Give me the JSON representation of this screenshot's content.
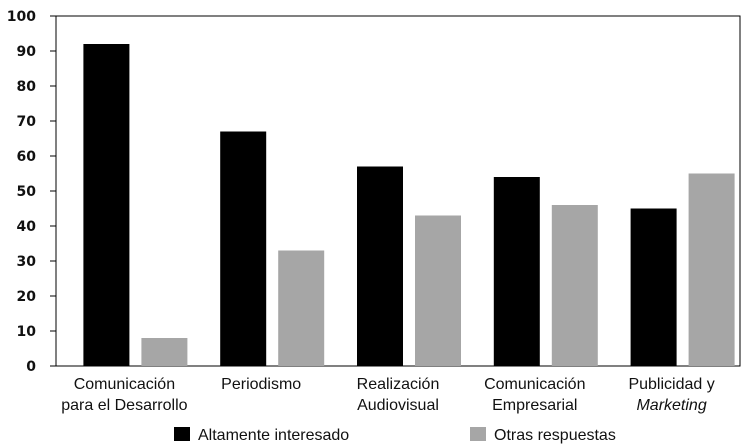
{
  "chart_data": {
    "type": "bar",
    "categories": [
      [
        "Comunicación",
        "para el Desarrollo"
      ],
      [
        "Periodismo"
      ],
      [
        "Realización",
        "Audiovisual"
      ],
      [
        "Comunicación",
        "Empresarial"
      ],
      [
        "Publicidad y",
        "Marketing"
      ]
    ],
    "series": [
      {
        "name": "Altamente interesado",
        "color": "#000000",
        "values": [
          92,
          67,
          57,
          54,
          45
        ]
      },
      {
        "name": "Otras respuestas",
        "color": "#a6a6a6",
        "values": [
          8,
          33,
          43,
          46,
          55
        ]
      }
    ],
    "ylim": [
      0,
      100
    ],
    "yticks": [
      0,
      10,
      20,
      30,
      40,
      50,
      60,
      70,
      80,
      90,
      100
    ],
    "grid": false,
    "legend_position": "bottom"
  }
}
